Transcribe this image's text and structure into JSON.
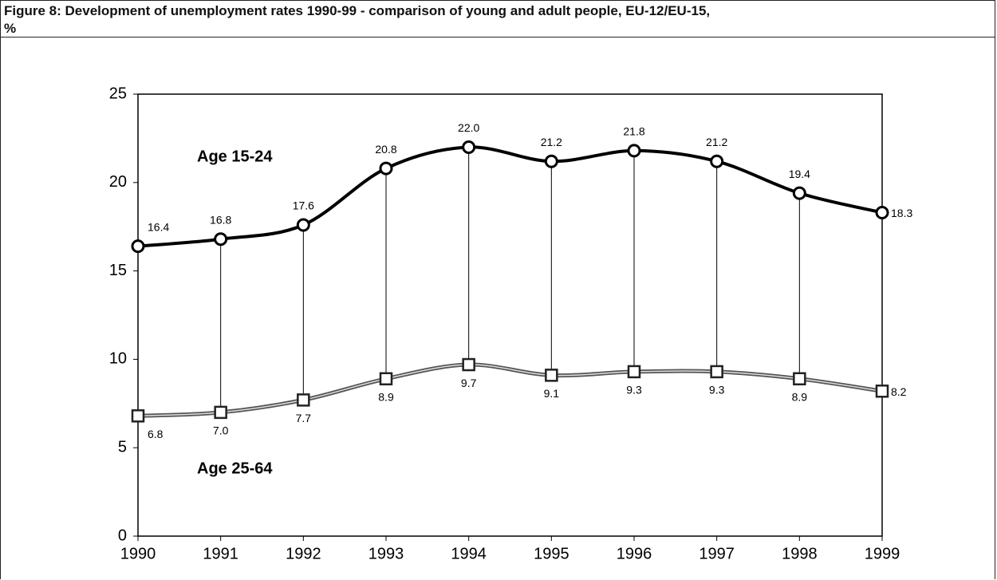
{
  "chart_data": {
    "type": "line",
    "title": "Figure 8: Development of unemployment rates 1990-99 - comparison of young and adult people, EU-12/EU-15, %",
    "x": [
      1990,
      1991,
      1992,
      1993,
      1994,
      1995,
      1996,
      1997,
      1998,
      1999
    ],
    "xlim": [
      1990,
      1999
    ],
    "xticks": [
      1990,
      1991,
      1992,
      1993,
      1994,
      1995,
      1996,
      1997,
      1998,
      1999
    ],
    "ylim": [
      0,
      25
    ],
    "yticks": [
      0,
      5,
      10,
      15,
      20,
      25
    ],
    "grid": false,
    "series": [
      {
        "name": "Age 15-24",
        "color": "#000000",
        "values": [
          16.4,
          16.8,
          17.6,
          20.8,
          22.0,
          21.2,
          21.8,
          21.2,
          19.4,
          18.3
        ],
        "value_labels": [
          "16.4",
          "16.8",
          "17.6",
          "20.8",
          "22.0",
          "21.2",
          "21.8",
          "21.2",
          "19.4",
          "18.3"
        ]
      },
      {
        "name": "Age 25-64",
        "color": "#555555",
        "values": [
          6.8,
          7.0,
          7.7,
          8.9,
          9.7,
          9.1,
          9.3,
          9.3,
          8.9,
          8.2
        ],
        "value_labels": [
          "6.8",
          "7.0",
          "7.7",
          "8.9",
          "9.7",
          "9.1",
          "9.3",
          "9.3",
          "8.9",
          "8.2"
        ]
      }
    ]
  }
}
